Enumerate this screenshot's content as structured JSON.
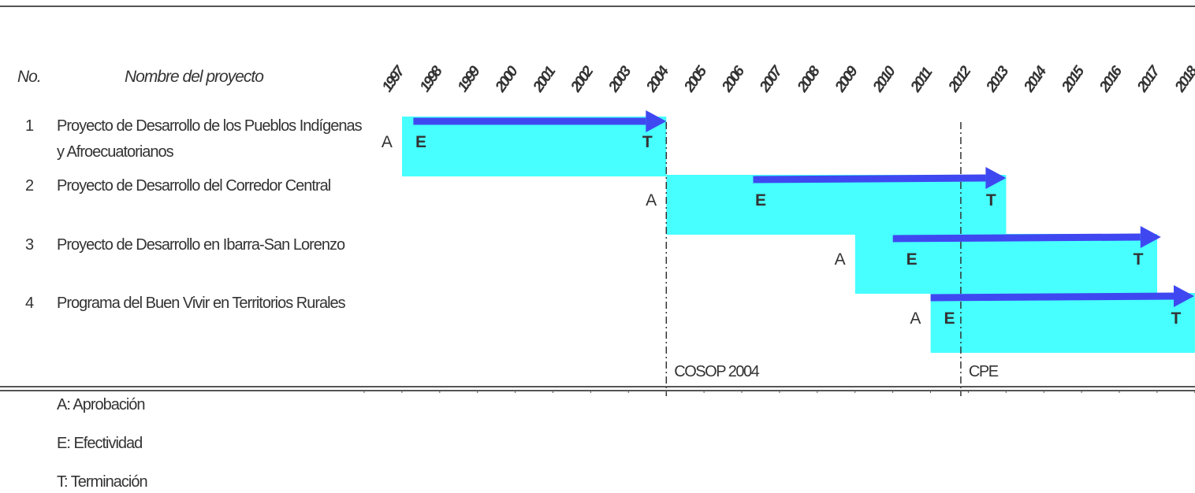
{
  "header": {
    "number_label": "No.",
    "name_label": "Nombre del proyecto"
  },
  "projects": [
    {
      "number": "1",
      "name": "Proyecto de Desarrollo de los Pueblos Indígenas y Afroecuatorianos"
    },
    {
      "number": "2",
      "name": "Proyecto de Desarrollo del Corredor Central"
    },
    {
      "number": "3",
      "name": "Proyecto de Desarrollo en Ibarra-San Lorenzo"
    },
    {
      "number": "4",
      "name": "Programa del Buen Vivir en Territorios Rurales"
    }
  ],
  "legend": [
    {
      "text": "A: Aprobación"
    },
    {
      "text": "E: Efectividad"
    },
    {
      "text": "T: Terminación"
    }
  ],
  "chart_data": {
    "type": "gantt",
    "title": "",
    "years": [
      "1997",
      "1998",
      "1999",
      "2000",
      "2001",
      "2002",
      "2003",
      "2004",
      "2005",
      "2006",
      "2007",
      "2008",
      "2009",
      "2010",
      "2011",
      "2012",
      "2013",
      "2014",
      "2015",
      "2016",
      "2017",
      "2018"
    ],
    "bars": [
      {
        "row": 1,
        "start": 1998.0,
        "end": 2005.0,
        "approval_label": "A",
        "approval": 1997.6,
        "effectiveness_label": "E",
        "effectiveness": 1998.5,
        "termination_label": "T",
        "termination": 2004.5,
        "arrow_start": 1998.3,
        "arrow_end": 2005.0
      },
      {
        "row": 2,
        "start": 2005.0,
        "end": 2014.0,
        "approval_label": "A",
        "approval": 2004.6,
        "effectiveness_label": "E",
        "effectiveness": 2007.5,
        "termination_label": "T",
        "termination": 2013.6,
        "arrow_start": 2007.3,
        "arrow_end": 2014.0
      },
      {
        "row": 3,
        "start": 2010.0,
        "end": 2018.0,
        "approval_label": "A",
        "approval": 2009.6,
        "effectiveness_label": "E",
        "effectiveness": 2011.5,
        "termination_label": "T",
        "termination": 2017.5,
        "arrow_start": 2011.0,
        "arrow_end": 2018.1
      },
      {
        "row": 4,
        "start": 2012.0,
        "end": 2019.0,
        "approval_label": "A",
        "approval": 2011.6,
        "effectiveness_label": "E",
        "effectiveness": 2012.5,
        "termination_label": "T",
        "termination": 2018.5,
        "arrow_start": 2012.0,
        "arrow_end": 2019.0
      }
    ],
    "milestones": [
      {
        "label": "COSOP 2004",
        "x": 2005.0
      },
      {
        "label": "CPE",
        "x": 2012.8
      }
    ],
    "colors": {
      "bar": "#47FFFF",
      "arrow": "#3F48F0",
      "text": "#333333",
      "rule": "#555555"
    }
  }
}
